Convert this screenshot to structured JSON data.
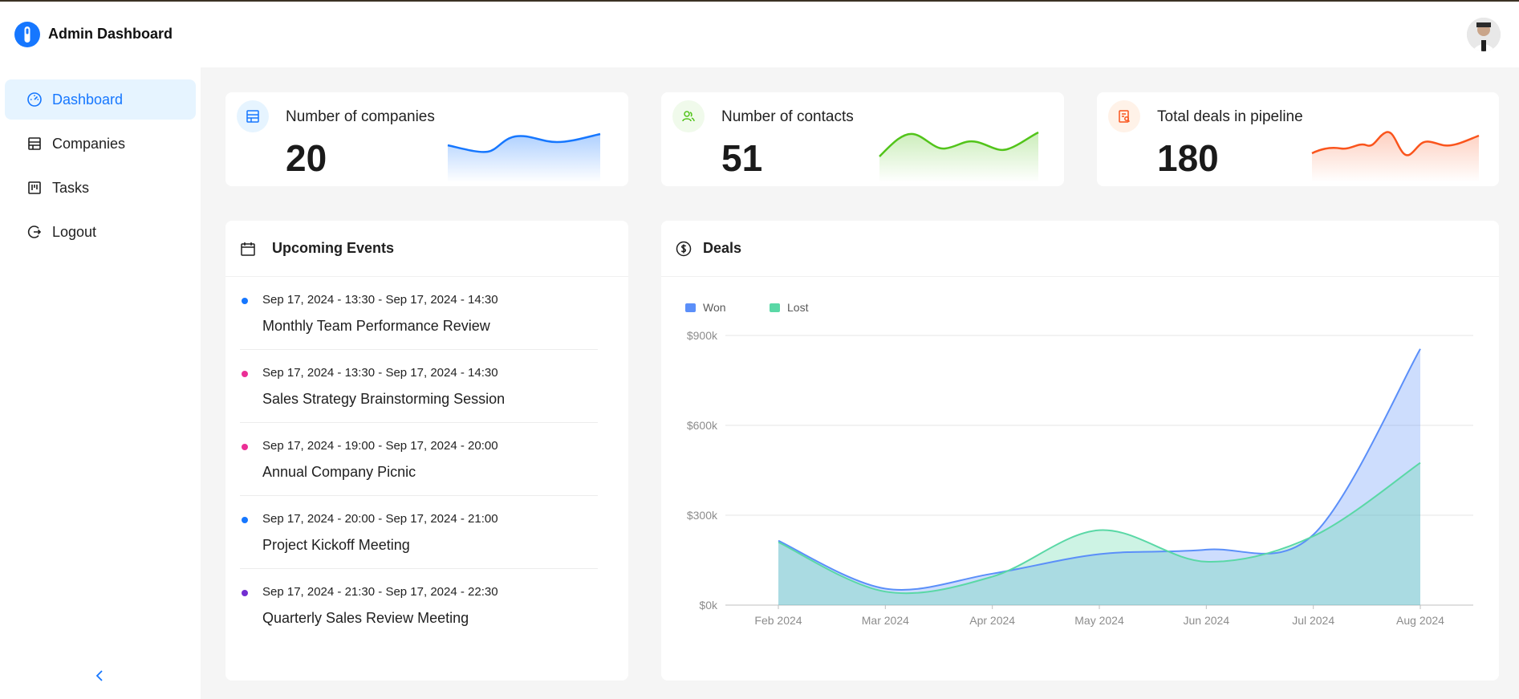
{
  "app": {
    "title": "Admin Dashboard"
  },
  "sidebar": {
    "items": [
      {
        "label": "Dashboard",
        "icon": "dashboard-icon",
        "active": true
      },
      {
        "label": "Companies",
        "icon": "shop-icon",
        "active": false
      },
      {
        "label": "Tasks",
        "icon": "kanban-icon",
        "active": false
      },
      {
        "label": "Logout",
        "icon": "logout-icon",
        "active": false
      }
    ]
  },
  "stats": [
    {
      "label": "Number of companies",
      "value": "20",
      "color": "#1677ff",
      "icon": "shop-icon"
    },
    {
      "label": "Number of contacts",
      "value": "51",
      "color": "#52c41a",
      "icon": "team-icon"
    },
    {
      "label": "Total deals in pipeline",
      "value": "180",
      "color": "#fa541c",
      "icon": "audit-icon"
    }
  ],
  "events": {
    "title": "Upcoming Events",
    "items": [
      {
        "time": "Sep 17, 2024 - 13:30 - Sep 17, 2024 - 14:30",
        "title": "Monthly Team Performance Review",
        "color": "#1677ff"
      },
      {
        "time": "Sep 17, 2024 - 13:30 - Sep 17, 2024 - 14:30",
        "title": "Sales Strategy Brainstorming Session",
        "color": "#eb2f96"
      },
      {
        "time": "Sep 17, 2024 - 19:00 - Sep 17, 2024 - 20:00",
        "title": "Annual Company Picnic",
        "color": "#eb2f96"
      },
      {
        "time": "Sep 17, 2024 - 20:00 - Sep 17, 2024 - 21:00",
        "title": "Project Kickoff Meeting",
        "color": "#1677ff"
      },
      {
        "time": "Sep 17, 2024 - 21:30 - Sep 17, 2024 - 22:30",
        "title": "Quarterly Sales Review Meeting",
        "color": "#722ed1"
      }
    ]
  },
  "deals": {
    "title": "Deals",
    "chart_data": {
      "type": "area",
      "categories": [
        "Feb 2024",
        "Mar 2024",
        "Apr 2024",
        "May 2024",
        "Jun 2024",
        "Jul 2024",
        "Aug 2024"
      ],
      "series": [
        {
          "name": "Won",
          "color": "#5b8ff9",
          "values": [
            215,
            55,
            105,
            170,
            185,
            235,
            855
          ]
        },
        {
          "name": "Lost",
          "color": "#5ad8a6",
          "values": [
            210,
            45,
            95,
            250,
            145,
            230,
            475
          ]
        }
      ],
      "y_ticks": [
        "$0k",
        "$300k",
        "$600k",
        "$900k"
      ],
      "ylim": [
        0,
        900
      ],
      "y_unit": "k",
      "legend": "top-left",
      "grid": true
    }
  }
}
